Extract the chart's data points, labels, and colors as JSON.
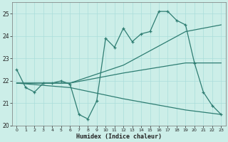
{
  "xlabel": "Humidex (Indice chaleur)",
  "background_color": "#cceee8",
  "grid_color": "#aaddda",
  "line_color": "#2e7d72",
  "xlim": [
    -0.5,
    23.5
  ],
  "ylim": [
    20,
    25.5
  ],
  "yticks": [
    20,
    21,
    22,
    23,
    24,
    25
  ],
  "xticks": [
    0,
    1,
    2,
    3,
    4,
    5,
    6,
    7,
    8,
    9,
    10,
    11,
    12,
    13,
    14,
    15,
    16,
    17,
    18,
    19,
    20,
    21,
    22,
    23
  ],
  "series_main": {
    "x": [
      0,
      1,
      2,
      3,
      4,
      5,
      6,
      7,
      8,
      9,
      10,
      11,
      12,
      13,
      14,
      15,
      16,
      17,
      18,
      19,
      20,
      21,
      22,
      23
    ],
    "y": [
      22.5,
      21.7,
      21.5,
      21.9,
      21.9,
      22.0,
      21.85,
      20.5,
      20.3,
      21.1,
      23.9,
      23.5,
      24.35,
      23.75,
      24.1,
      24.2,
      25.1,
      25.1,
      24.7,
      24.5,
      22.8,
      21.5,
      20.9,
      20.5
    ]
  },
  "series_smooth": [
    {
      "x": [
        0,
        6,
        12,
        19,
        23
      ],
      "y": [
        21.9,
        21.9,
        22.7,
        24.2,
        24.5
      ]
    },
    {
      "x": [
        0,
        6,
        12,
        19,
        23
      ],
      "y": [
        21.9,
        21.9,
        22.35,
        22.8,
        22.8
      ]
    },
    {
      "x": [
        0,
        6,
        12,
        19,
        23
      ],
      "y": [
        21.9,
        21.7,
        21.2,
        20.7,
        20.5
      ]
    }
  ]
}
